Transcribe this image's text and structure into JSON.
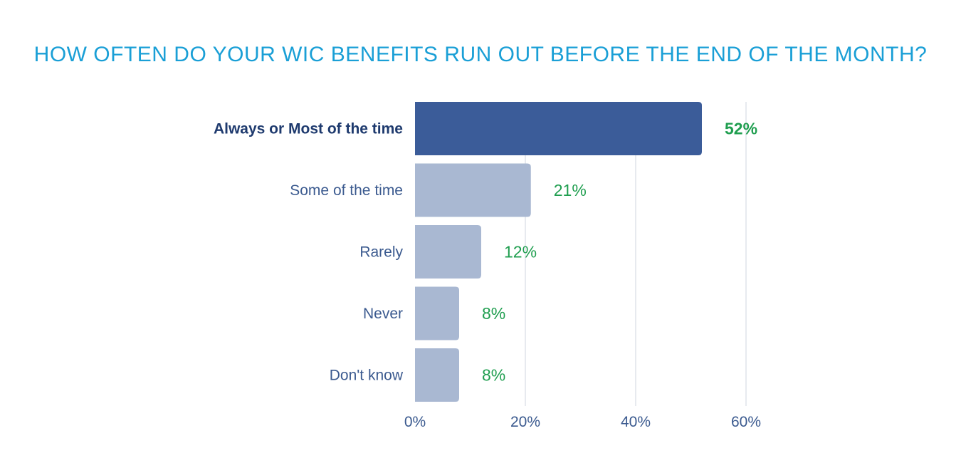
{
  "chart_data": {
    "type": "bar",
    "orientation": "horizontal",
    "title": "HOW OFTEN DO YOUR WIC BENEFITS RUN OUT BEFORE THE END OF THE MONTH?",
    "categories": [
      "Always or Most of the time",
      "Some of the time",
      "Rarely",
      "Never",
      "Don't know"
    ],
    "values": [
      52,
      21,
      12,
      8,
      8
    ],
    "value_labels": [
      "52%",
      "21%",
      "12%",
      "8%",
      "8%"
    ],
    "highlight_index": 0,
    "xlim": [
      0,
      60
    ],
    "x_ticks": [
      0,
      20,
      40,
      60
    ],
    "x_tick_labels": [
      "0%",
      "20%",
      "40%",
      "60%"
    ],
    "grid": true,
    "colors": {
      "highlight_bar": "#3b5c99",
      "bar": "#a9b8d2",
      "title": "#1a9fd6",
      "value_label": "#1f9e4f",
      "category_label": "#3b5a8f",
      "gridline": "#dfe3ea"
    }
  }
}
